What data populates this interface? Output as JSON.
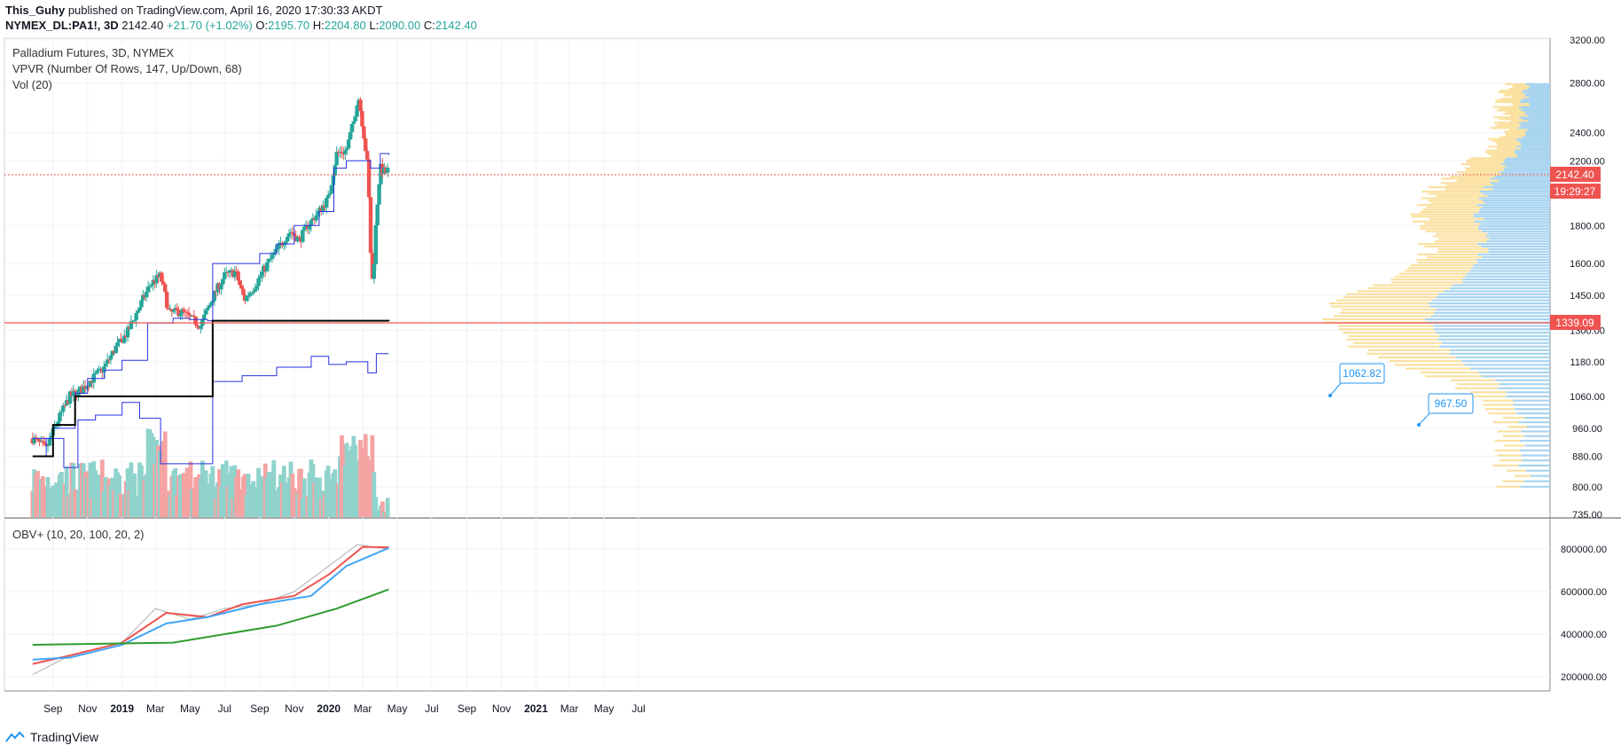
{
  "header": {
    "author": "This_Guhy",
    "published_text": "published on TradingView.com, April 16, 2020 17:30:33 AKDT",
    "symbol": "NYMEX_DL:PA1!, 3D",
    "last": "2142.40",
    "change": "+21.70 (+1.02%)",
    "o_label": "O:",
    "o": "2195.70",
    "h_label": "H:",
    "h": "2204.80",
    "l_label": "L:",
    "l": "2090.00",
    "c_label": "C:",
    "c": "2142.40"
  },
  "legend": {
    "line1": "Palladium Futures, 3D, NYMEX",
    "line2": "VPVR (Number Of Rows, 147, Up/Down, 68)",
    "line3": "Vol (20)",
    "obv": "OBV+ (10, 20, 100, 20, 2)"
  },
  "footer": {
    "brand": "TradingView"
  },
  "colors": {
    "up": "#26a69a",
    "down": "#ef5350",
    "vol_up": "#8fd3cc",
    "vol_down": "#f5a3a3",
    "vwap_blue": "#2932e1",
    "poc_black": "#000000",
    "vpvr_up": "#a8d4f0",
    "vpvr_down": "#fbe1a0",
    "obv_gray": "#b0b0b0",
    "obv_red": "#ef5350",
    "obv_blue": "#42a5f5",
    "obv_green": "#2e9d2e",
    "price_label": "#ef5350"
  },
  "chart_data": [
    {
      "type": "candlestick",
      "title": "Palladium Futures, 3D, NYMEX",
      "y_axis_ticks": [
        "3200.00",
        "2800.00",
        "2400.00",
        "2200.00",
        "1800.00",
        "1600.00",
        "1450.00",
        "1300.00",
        "1180.00",
        "1060.00",
        "960.00",
        "880.00",
        "800.00",
        "735.00"
      ],
      "x_axis_ticks": [
        "Sep",
        "Nov",
        "2019",
        "Mar",
        "May",
        "Jul",
        "Sep",
        "Nov",
        "2020",
        "Mar",
        "May",
        "Jul",
        "Sep",
        "Nov",
        "2021",
        "Mar",
        "May",
        "Jul"
      ],
      "price_labels": {
        "last": "2142.40",
        "countdown": "19:29:27",
        "poc": "1339.09"
      },
      "callouts": [
        "1062.82",
        "967.50"
      ],
      "close_path": [
        {
          "x": "2018-07-27",
          "close": 930
        },
        {
          "x": "2018-08-20",
          "close": 900
        },
        {
          "x": "2018-09-10",
          "close": 985
        },
        {
          "x": "2018-10-01",
          "close": 1060
        },
        {
          "x": "2018-10-20",
          "close": 1080
        },
        {
          "x": "2018-11-10",
          "close": 1120
        },
        {
          "x": "2018-12-01",
          "close": 1160
        },
        {
          "x": "2018-12-20",
          "close": 1230
        },
        {
          "x": "2019-01-10",
          "close": 1290
        },
        {
          "x": "2019-02-01",
          "close": 1400
        },
        {
          "x": "2019-02-20",
          "close": 1500
        },
        {
          "x": "2019-03-10",
          "close": 1540
        },
        {
          "x": "2019-03-25",
          "close": 1370
        },
        {
          "x": "2019-04-15",
          "close": 1380
        },
        {
          "x": "2019-05-01",
          "close": 1350
        },
        {
          "x": "2019-05-20",
          "close": 1320
        },
        {
          "x": "2019-06-10",
          "close": 1440
        },
        {
          "x": "2019-07-01",
          "close": 1540
        },
        {
          "x": "2019-07-20",
          "close": 1560
        },
        {
          "x": "2019-08-05",
          "close": 1430
        },
        {
          "x": "2019-08-25",
          "close": 1500
        },
        {
          "x": "2019-09-15",
          "close": 1600
        },
        {
          "x": "2019-10-05",
          "close": 1680
        },
        {
          "x": "2019-10-25",
          "close": 1770
        },
        {
          "x": "2019-11-10",
          "close": 1720
        },
        {
          "x": "2019-11-25",
          "close": 1800
        },
        {
          "x": "2019-12-15",
          "close": 1880
        },
        {
          "x": "2020-01-01",
          "close": 1960
        },
        {
          "x": "2020-01-15",
          "close": 2250
        },
        {
          "x": "2020-02-01",
          "close": 2270
        },
        {
          "x": "2020-02-15",
          "close": 2500
        },
        {
          "x": "2020-02-22",
          "close": 2700
        },
        {
          "x": "2020-03-01",
          "close": 2450
        },
        {
          "x": "2020-03-10",
          "close": 2150
        },
        {
          "x": "2020-03-16",
          "close": 1560
        },
        {
          "x": "2020-03-19",
          "close": 1500
        },
        {
          "x": "2020-03-25",
          "close": 1850
        },
        {
          "x": "2020-04-01",
          "close": 2150
        },
        {
          "x": "2020-04-10",
          "close": 2120
        },
        {
          "x": "2020-04-16",
          "close": 2142.4
        }
      ]
    },
    {
      "type": "line",
      "title": "OBV+ (10, 20, 100, 20, 2)",
      "y_axis_ticks": [
        "800000.00",
        "600000.00",
        "400000.00",
        "200000.00"
      ]
    }
  ]
}
